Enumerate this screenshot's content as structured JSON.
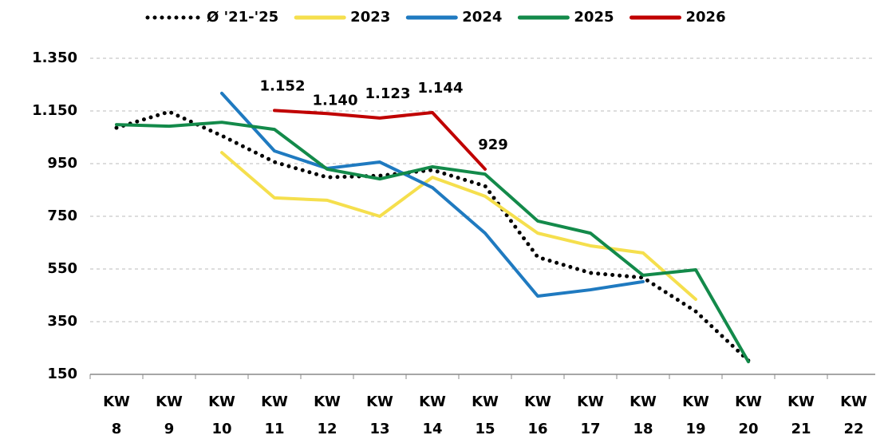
{
  "chart_data": {
    "type": "line",
    "categories": [
      "KW 8",
      "KW 9",
      "KW 10",
      "KW 11",
      "KW 12",
      "KW 13",
      "KW 14",
      "KW 15",
      "KW 16",
      "KW 17",
      "KW 18",
      "KW 19",
      "KW 20",
      "KW 21",
      "KW 22"
    ],
    "series": [
      {
        "name": "Ø '21-'25",
        "color": "#000000",
        "dotted": true,
        "values": [
          1086,
          1147,
          1056,
          956,
          898,
          904,
          926,
          865,
          595,
          535,
          517,
          389,
          202,
          null,
          null
        ]
      },
      {
        "name": "2023",
        "color": "#f5df4d",
        "values": [
          null,
          null,
          992,
          820,
          811,
          750,
          898,
          826,
          686,
          638,
          611,
          435,
          null,
          null,
          null
        ]
      },
      {
        "name": "2024",
        "color": "#1f7ac0",
        "values": [
          null,
          null,
          1217,
          998,
          932,
          956,
          859,
          686,
          447,
          471,
          502,
          null,
          null,
          null,
          null
        ]
      },
      {
        "name": "2025",
        "color": "#138a4a",
        "values": [
          1098,
          1092,
          1107,
          1080,
          929,
          892,
          938,
          910,
          732,
          686,
          526,
          547,
          198,
          null,
          null
        ]
      },
      {
        "name": "2026",
        "color": "#c00000",
        "values": [
          null,
          null,
          null,
          1152,
          1140,
          1123,
          1144,
          929,
          null,
          null,
          null,
          null,
          null,
          null,
          null
        ],
        "value_labels": [
          null,
          null,
          null,
          "1.152",
          "1.140",
          "1.123",
          "1.144",
          "929",
          null,
          null,
          null,
          null,
          null,
          null,
          null
        ]
      }
    ],
    "ylim": [
      150,
      1350
    ],
    "yticks": [
      150,
      350,
      550,
      750,
      950,
      {
        "value": 1150,
        "label": "1.150"
      },
      {
        "value": 1350,
        "label": "1.350"
      }
    ],
    "grid": true,
    "legend": "top"
  }
}
